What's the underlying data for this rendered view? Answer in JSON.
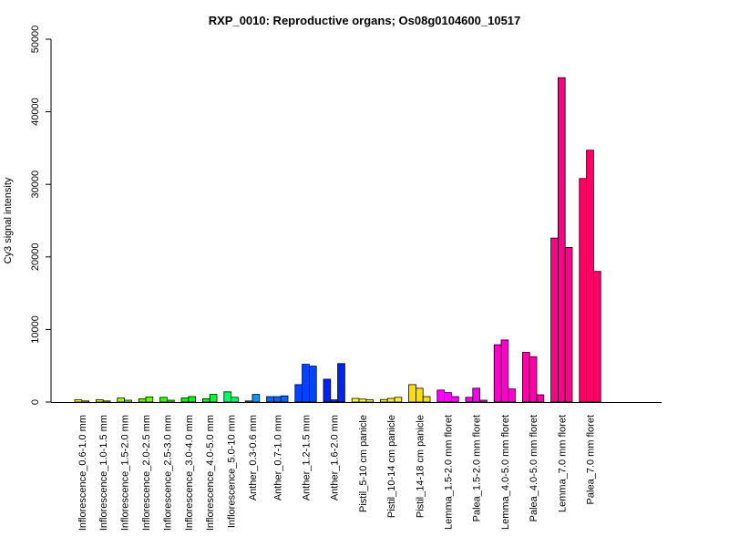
{
  "chart_data": {
    "type": "bar",
    "title": "RXP_0010: Reproductive organs; Os08g0104600_10517",
    "ylabel": "Cy3 signal intensity",
    "xlabel": "",
    "ylim": [
      0,
      50000
    ],
    "yticks": [
      0,
      10000,
      20000,
      30000,
      40000,
      50000
    ],
    "grid": false,
    "groups": [
      {
        "label": "Inflorescence_0.6-1.0 mm",
        "color": "#FFFF00",
        "values": [
          300,
          150
        ]
      },
      {
        "label": "Inflorescence_1.0-1.5 mm",
        "color": "#CCFF00",
        "values": [
          300,
          150
        ]
      },
      {
        "label": "Inflorescence_1.5-2.0 mm",
        "color": "#99FF00",
        "values": [
          550,
          250
        ]
      },
      {
        "label": "Inflorescence_2.0-2.5 mm",
        "color": "#66FF00",
        "values": [
          450,
          700
        ]
      },
      {
        "label": "Inflorescence_2.5-3.0 mm",
        "color": "#33FF00",
        "values": [
          650,
          250
        ]
      },
      {
        "label": "Inflorescence_3.0-4.0 mm",
        "color": "#00FF00",
        "values": [
          550,
          750
        ]
      },
      {
        "label": "Inflorescence_4.0-5.0 mm",
        "color": "#00FF33",
        "values": [
          450,
          1050
        ]
      },
      {
        "label": "Inflorescence_5.0-10 mm",
        "color": "#00FF66",
        "values": [
          1400,
          650
        ]
      },
      {
        "label": "Anther_0.3-0.6 mm",
        "color": "#0099FF",
        "values": [
          150,
          1050
        ]
      },
      {
        "label": "Anther_0.7-1.0 mm",
        "color": "#0066FF",
        "values": [
          750,
          750,
          850
        ]
      },
      {
        "label": "Anther_1.2-1.5 mm",
        "color": "#0044FF",
        "values": [
          2400,
          5200,
          4950
        ]
      },
      {
        "label": "Anther_1.6-2.0 mm",
        "color": "#0022FF",
        "values": [
          3150,
          300,
          5300
        ]
      },
      {
        "label": "Pistil_5-10 cm panicle",
        "color": "#FFFF33",
        "values": [
          500,
          400,
          300
        ]
      },
      {
        "label": "Pistil_10-14 cm panicle",
        "color": "#FFEE33",
        "values": [
          350,
          500,
          650
        ]
      },
      {
        "label": "Pistil_14-18 cm panicle",
        "color": "#FFDD00",
        "values": [
          2400,
          1900,
          750
        ]
      },
      {
        "label": "Lemma_1.5-2.0 mm floret",
        "color": "#FF00FF",
        "values": [
          1650,
          1300,
          750
        ]
      },
      {
        "label": "Palea_1.5-2.0 mm floret",
        "color": "#FF00EE",
        "values": [
          650,
          1900,
          250
        ]
      },
      {
        "label": "Lemma_4.0-5.0 mm floret",
        "color": "#FF00CC",
        "values": [
          7900,
          8550,
          1800
        ]
      },
      {
        "label": "Palea_4.0-5.0 mm floret",
        "color": "#FF00AA",
        "values": [
          6850,
          6250,
          1000
        ]
      },
      {
        "label": "Lemma_7.0 mm floret",
        "color": "#FF0088",
        "values": [
          22600,
          44700,
          21300
        ]
      },
      {
        "label": "Palea_7.0 mm floret",
        "color": "#FF0066",
        "values": [
          30800,
          34700,
          18000
        ]
      }
    ]
  }
}
